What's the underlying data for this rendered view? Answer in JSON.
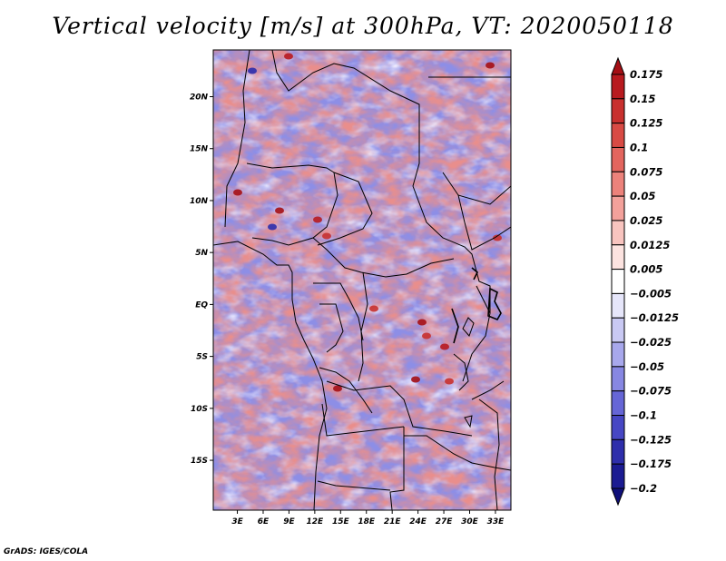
{
  "title": "Vertical velocity [m/s] at 300hPa, VT: 2020050118",
  "footer": "GrADS: IGES/COLA",
  "map": {
    "lat_labels": [
      "20N",
      "15N",
      "10N",
      "5N",
      "EQ",
      "5S",
      "10S",
      "15S"
    ],
    "lat_values": [
      20,
      15,
      10,
      5,
      0,
      -5,
      -10,
      -15
    ],
    "lon_labels": [
      "3E",
      "6E",
      "9E",
      "12E",
      "15E",
      "18E",
      "21E",
      "24E",
      "27E",
      "30E",
      "33E"
    ],
    "lon_values": [
      3,
      6,
      9,
      12,
      15,
      18,
      21,
      24,
      27,
      30,
      33
    ],
    "lon_range": [
      0.2,
      34.8
    ],
    "lat_range": [
      -19.8,
      24.5
    ]
  },
  "colorbar": {
    "labels": [
      "0.175",
      "0.15",
      "0.125",
      "0.1",
      "0.075",
      "0.05",
      "0.025",
      "0.0125",
      "0.005",
      "−0.005",
      "−0.0125",
      "−0.025",
      "−0.05",
      "−0.075",
      "−0.1",
      "−0.125",
      "−0.175",
      "−0.2"
    ],
    "colors": [
      "#a50f15",
      "#b81a1f",
      "#c8302e",
      "#d84a44",
      "#e3655e",
      "#ec827b",
      "#f3a19b",
      "#f8c4bf",
      "#fce3e0",
      "#ffffff",
      "#e6e6fa",
      "#c9c9f3",
      "#a8a8ec",
      "#8787e2",
      "#6666d6",
      "#4747c4",
      "#2e2eab",
      "#1b1b92",
      "#10107a"
    ]
  }
}
